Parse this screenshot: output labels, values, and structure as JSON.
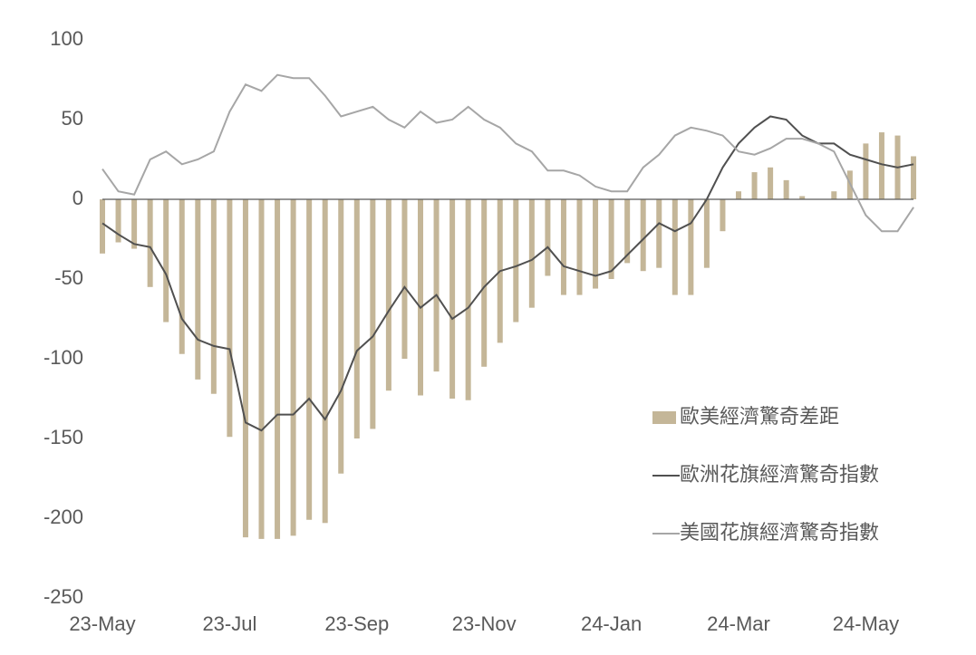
{
  "chart_data": {
    "type": "bar",
    "categories": [
      "23-May",
      null,
      null,
      null,
      null,
      null,
      null,
      null,
      "23-Jul",
      null,
      null,
      null,
      null,
      null,
      null,
      null,
      "23-Sep",
      null,
      null,
      null,
      null,
      null,
      null,
      null,
      "23-Nov",
      null,
      null,
      null,
      null,
      null,
      null,
      null,
      "24-Jan",
      null,
      null,
      null,
      null,
      null,
      null,
      null,
      "24-Mar",
      null,
      null,
      null,
      null,
      null,
      null,
      null,
      "24-May",
      null,
      null,
      null
    ],
    "series": [
      {
        "name": "歐美經濟驚奇差距",
        "type": "bar",
        "color": "#c4b698",
        "values": [
          -34,
          -27,
          -31,
          -55,
          -77,
          -97,
          -113,
          -122,
          -149,
          -212,
          -213,
          -213,
          -211,
          -201,
          -203,
          -172,
          -150,
          -144,
          -120,
          -100,
          -123,
          -108,
          -125,
          -126,
          -105,
          -90,
          -77,
          -68,
          -48,
          -60,
          -60,
          -56,
          -50,
          -40,
          -45,
          -43,
          -60,
          -60,
          -43,
          -20,
          5,
          17,
          20,
          12,
          2,
          0,
          5,
          18,
          35,
          42,
          40,
          27
        ]
      },
      {
        "name": "歐洲花旗經濟驚奇指數",
        "type": "line",
        "color": "#505050",
        "values": [
          -15,
          -22,
          -28,
          -30,
          -47,
          -75,
          -88,
          -92,
          -94,
          -140,
          -145,
          -135,
          -135,
          -125,
          -138,
          -120,
          -95,
          -86,
          -70,
          -55,
          -68,
          -60,
          -75,
          -68,
          -55,
          -45,
          -42,
          -38,
          -30,
          -42,
          -45,
          -48,
          -45,
          -35,
          -25,
          -15,
          -20,
          -15,
          0,
          20,
          35,
          45,
          52,
          50,
          40,
          35,
          35,
          28,
          25,
          22,
          20,
          22
        ]
      },
      {
        "name": "美國花旗經濟驚奇指數",
        "type": "line",
        "color": "#a6a6a6",
        "values": [
          19,
          5,
          3,
          25,
          30,
          22,
          25,
          30,
          55,
          72,
          68,
          78,
          76,
          76,
          65,
          52,
          55,
          58,
          50,
          45,
          55,
          48,
          50,
          58,
          50,
          45,
          35,
          30,
          18,
          18,
          15,
          8,
          5,
          5,
          20,
          28,
          40,
          45,
          43,
          40,
          30,
          28,
          32,
          38,
          38,
          35,
          30,
          10,
          -10,
          -20,
          -20,
          -5
        ]
      }
    ],
    "ylim": [
      -250,
      100
    ],
    "yticks": [
      100,
      50,
      0,
      -50,
      -100,
      -150,
      -200,
      -250
    ],
    "grid": false,
    "legend": "right"
  }
}
